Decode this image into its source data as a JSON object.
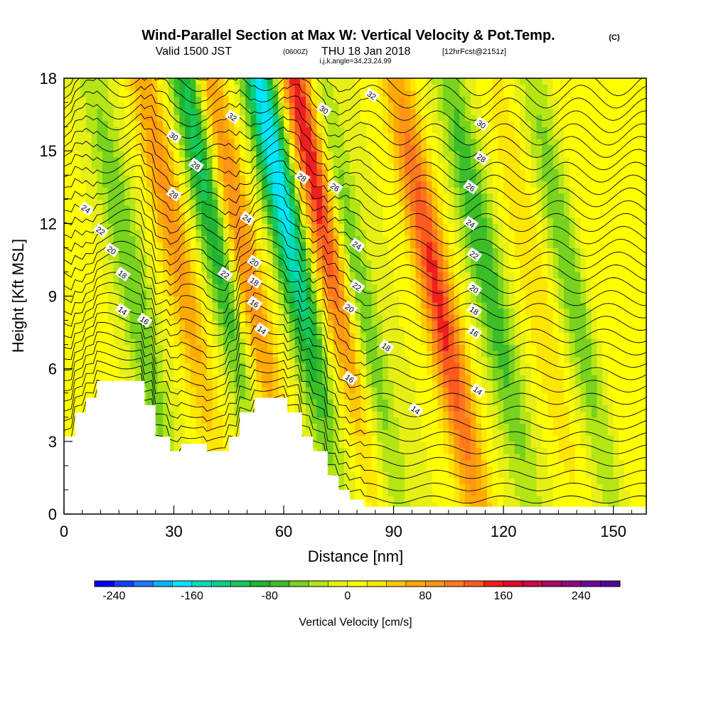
{
  "header": {
    "title": "Wind-Parallel Section at Max W: Vertical Velocity & Pot.Temp.",
    "title_mark": "(C)",
    "valid_main": "Valid 1500 JST",
    "valid_zulu": "(0600Z)",
    "valid_date": "THU 18 Jan 2018",
    "forecast": "[12hrFcst@2151z]",
    "indices": "i,j,k,angle=34,23,24,99"
  },
  "chart_data": {
    "type": "heatmap",
    "title": "Wind-Parallel Section at Max W: Vertical Velocity & Pot.Temp.",
    "xlabel": "Distance [nm]",
    "ylabel": "Height [Kft MSL]",
    "xlim": [
      0,
      159
    ],
    "ylim": [
      0,
      18
    ],
    "x_ticks": [
      0,
      30,
      60,
      90,
      120,
      150
    ],
    "y_ticks": [
      0,
      3,
      6,
      9,
      12,
      15,
      18
    ],
    "x_tick_labels": [
      "0",
      "30",
      "60",
      "90",
      "120",
      "150"
    ],
    "y_tick_labels": [
      "0",
      "3",
      "6",
      "9",
      "12",
      "15",
      "18"
    ],
    "fill_variable": "Vertical Velocity [cm/s]",
    "contour_variable": "Pot.Temp. (C)",
    "terrain_profile": [
      {
        "x": 0,
        "top": 3.2
      },
      {
        "x": 3,
        "top": 4.2
      },
      {
        "x": 6,
        "top": 4.8
      },
      {
        "x": 9,
        "top": 5.5
      },
      {
        "x": 22,
        "top": 4.5
      },
      {
        "x": 25,
        "top": 3.2
      },
      {
        "x": 29,
        "top": 2.6
      },
      {
        "x": 32,
        "top": 2.9
      },
      {
        "x": 39,
        "top": 2.6
      },
      {
        "x": 45,
        "top": 3.2
      },
      {
        "x": 48,
        "top": 4.2
      },
      {
        "x": 52,
        "top": 4.8
      },
      {
        "x": 61,
        "top": 4.2
      },
      {
        "x": 65,
        "top": 3.2
      },
      {
        "x": 68,
        "top": 2.6
      },
      {
        "x": 72,
        "top": 1.6
      },
      {
        "x": 75,
        "top": 1.0
      },
      {
        "x": 78,
        "top": 0.6
      },
      {
        "x": 82,
        "top": 0.3
      },
      {
        "x": 159,
        "top": 0.3
      }
    ],
    "velocity_bands": [
      {
        "center_x": 8,
        "center_y": 7,
        "value": 20
      },
      {
        "center_x": 18,
        "center_y": 10,
        "value": -60
      },
      {
        "center_x": 28,
        "center_y": 13,
        "value": 90
      },
      {
        "center_x": 37,
        "center_y": 15,
        "value": -120
      },
      {
        "center_x": 47,
        "center_y": 12,
        "value": 110
      },
      {
        "center_x": 57,
        "center_y": 15,
        "value": -180
      },
      {
        "center_x": 67,
        "center_y": 15,
        "value": 170
      },
      {
        "center_x": 79,
        "center_y": 10,
        "value": -70
      },
      {
        "center_x": 102,
        "center_y": 9,
        "value": 150
      },
      {
        "center_x": 114,
        "center_y": 11,
        "value": -80
      },
      {
        "center_x": 128,
        "center_y": 10,
        "value": 40
      },
      {
        "center_x": 138,
        "center_y": 10,
        "value": -60
      },
      {
        "center_x": 147,
        "center_y": 8,
        "value": 20
      }
    ],
    "contour_labels": [
      {
        "text": "32",
        "x": 46,
        "y": 16.4
      },
      {
        "text": "32",
        "x": 84,
        "y": 17.3
      },
      {
        "text": "30",
        "x": 30,
        "y": 15.6
      },
      {
        "text": "30",
        "x": 71,
        "y": 16.7
      },
      {
        "text": "30",
        "x": 114,
        "y": 16.1
      },
      {
        "text": "28",
        "x": 36,
        "y": 14.4
      },
      {
        "text": "28",
        "x": 30,
        "y": 13.2
      },
      {
        "text": "28",
        "x": 65,
        "y": 13.9
      },
      {
        "text": "28",
        "x": 114,
        "y": 14.7
      },
      {
        "text": "26",
        "x": 74,
        "y": 13.5
      },
      {
        "text": "26",
        "x": 111,
        "y": 13.5
      },
      {
        "text": "24",
        "x": 6,
        "y": 12.6
      },
      {
        "text": "24",
        "x": 50,
        "y": 12.2
      },
      {
        "text": "24",
        "x": 80,
        "y": 11.1
      },
      {
        "text": "24",
        "x": 111,
        "y": 12.0
      },
      {
        "text": "22",
        "x": 10,
        "y": 11.7
      },
      {
        "text": "22",
        "x": 44,
        "y": 9.9
      },
      {
        "text": "22",
        "x": 80,
        "y": 9.4
      },
      {
        "text": "22",
        "x": 112,
        "y": 10.7
      },
      {
        "text": "20",
        "x": 13,
        "y": 10.9
      },
      {
        "text": "20",
        "x": 52,
        "y": 10.4
      },
      {
        "text": "20",
        "x": 78,
        "y": 8.5
      },
      {
        "text": "20",
        "x": 112,
        "y": 9.3
      },
      {
        "text": "18",
        "x": 16,
        "y": 9.9
      },
      {
        "text": "18",
        "x": 52,
        "y": 9.6
      },
      {
        "text": "18",
        "x": 88,
        "y": 6.9
      },
      {
        "text": "18",
        "x": 112,
        "y": 8.4
      },
      {
        "text": "16",
        "x": 22,
        "y": 8.0
      },
      {
        "text": "16",
        "x": 52,
        "y": 8.7
      },
      {
        "text": "16",
        "x": 78,
        "y": 5.6
      },
      {
        "text": "16",
        "x": 112,
        "y": 7.5
      },
      {
        "text": "14",
        "x": 16,
        "y": 8.4
      },
      {
        "text": "14",
        "x": 54,
        "y": 7.6
      },
      {
        "text": "14",
        "x": 96,
        "y": 4.3
      },
      {
        "text": "14",
        "x": 113,
        "y": 5.1
      }
    ]
  },
  "colorbar": {
    "label": "Vertical Velocity [cm/s]",
    "min": -260,
    "max": 280,
    "step": 20,
    "ticks": [
      -240,
      -160,
      -80,
      0,
      80,
      160,
      240
    ],
    "tick_labels": [
      "-240",
      "-160",
      "-80",
      "0",
      "80",
      "160",
      "240"
    ],
    "colors": [
      "#0000ee",
      "#1440ff",
      "#1e78ff",
      "#00b4ff",
      "#00e6ff",
      "#00dcc0",
      "#00d28c",
      "#14c85a",
      "#1eb432",
      "#3cbe28",
      "#78d21e",
      "#b4e614",
      "#e6f014",
      "#ffff00",
      "#ffe600",
      "#ffc800",
      "#ffaa00",
      "#ff9614",
      "#ff781e",
      "#ff5a1e",
      "#f01e1e",
      "#dc0a28",
      "#c80a46",
      "#aa0a64",
      "#8c0a82",
      "#6e0a96",
      "#50089a"
    ]
  }
}
